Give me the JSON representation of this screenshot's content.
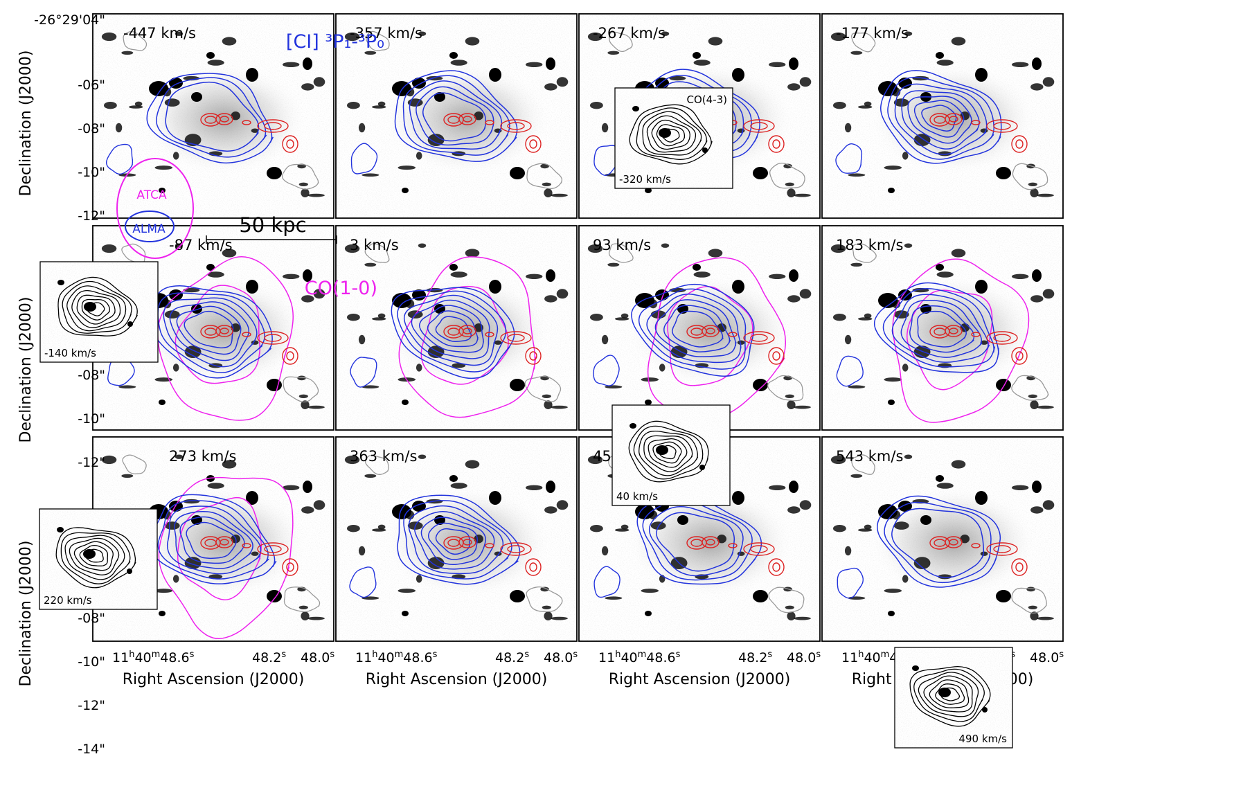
{
  "chart_data": {
    "type": "channel-map",
    "colors": {
      "ci": "#2233dd",
      "co10": "#ee22ee",
      "red": "#dd2222",
      "grey": "#999999",
      "inset": "#000000"
    },
    "legend": {
      "ci_label": "[CI] ³P₁-³P₀",
      "co10_label": "CO(1-0)",
      "atca_label": "ATCA",
      "alma_label": "ALMA",
      "scalebar_label": "50 kpc"
    },
    "xlabel": "Right Ascension (J2000)",
    "ylabel": "Declination (J2000)",
    "dec_ticks": [
      "-26°29'04\"",
      "-06\"",
      "-08\"",
      "-10\"",
      "-12\"",
      "-14\""
    ],
    "ra_ticks": [
      "11h40m48.6s",
      "48.2s",
      "48.0s"
    ],
    "ra_tick_parts": {
      "first": [
        "11",
        "h",
        "40",
        "m",
        "48.6",
        "s"
      ],
      "second": [
        "48.2",
        "s"
      ],
      "third": [
        "48.0",
        "s"
      ]
    },
    "panels": [
      {
        "velocity": "-447 km/s",
        "blue_levels": 3,
        "magenta": false
      },
      {
        "velocity": "-357 km/s",
        "blue_levels": 5,
        "magenta": false
      },
      {
        "velocity": "-267 km/s",
        "blue_levels": 7,
        "magenta": false
      },
      {
        "velocity": "-177 km/s",
        "blue_levels": 7,
        "magenta": false
      },
      {
        "velocity": "-87 km/s",
        "blue_levels": 6,
        "magenta": true
      },
      {
        "velocity": "3 km/s",
        "blue_levels": 7,
        "magenta": true
      },
      {
        "velocity": "93 km/s",
        "blue_levels": 6,
        "magenta": true
      },
      {
        "velocity": "183 km/s",
        "blue_levels": 6,
        "magenta": true
      },
      {
        "velocity": "273 km/s",
        "blue_levels": 6,
        "magenta": true
      },
      {
        "velocity": "363 km/s",
        "blue_levels": 7,
        "magenta": false
      },
      {
        "velocity": "453 km/s",
        "blue_levels": 4,
        "magenta": false
      },
      {
        "velocity": "543 km/s",
        "blue_levels": 3,
        "magenta": false
      }
    ],
    "insets": [
      {
        "title": "CO(4-3)",
        "velocity": "-320 km/s"
      },
      {
        "title": "",
        "velocity": "-140 km/s"
      },
      {
        "title": "",
        "velocity": "40 km/s"
      },
      {
        "title": "",
        "velocity": "220 km/s"
      },
      {
        "title": "",
        "velocity": "490 km/s"
      }
    ]
  }
}
